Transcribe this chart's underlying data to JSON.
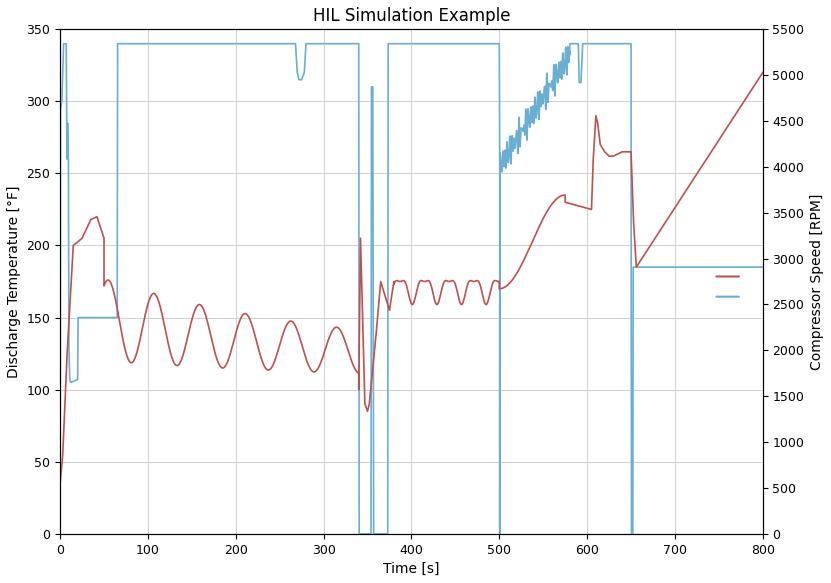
{
  "title": "HIL Simulation Example",
  "xlabel": "Time [s]",
  "ylabel_left": "Discharge Temperature [°F]",
  "ylabel_right": "Compressor Speed [RPM]",
  "xlim": [
    0,
    800
  ],
  "ylim_left": [
    0,
    350
  ],
  "ylim_right": [
    0,
    5500
  ],
  "yticks_left": [
    0,
    50,
    100,
    150,
    200,
    250,
    300,
    350
  ],
  "yticks_right": [
    0,
    500,
    1000,
    1500,
    2000,
    2500,
    3000,
    3500,
    4000,
    4500,
    5000,
    5500
  ],
  "xticks": [
    0,
    100,
    200,
    300,
    400,
    500,
    600,
    700,
    800
  ],
  "color_blue": "#6aafd2",
  "color_red": "#c0504d",
  "bg_color": "#ffffff",
  "grid_color": "#d0d0d0",
  "title_fontsize": 12,
  "label_fontsize": 10,
  "tick_fontsize": 9,
  "linewidth": 1.2
}
